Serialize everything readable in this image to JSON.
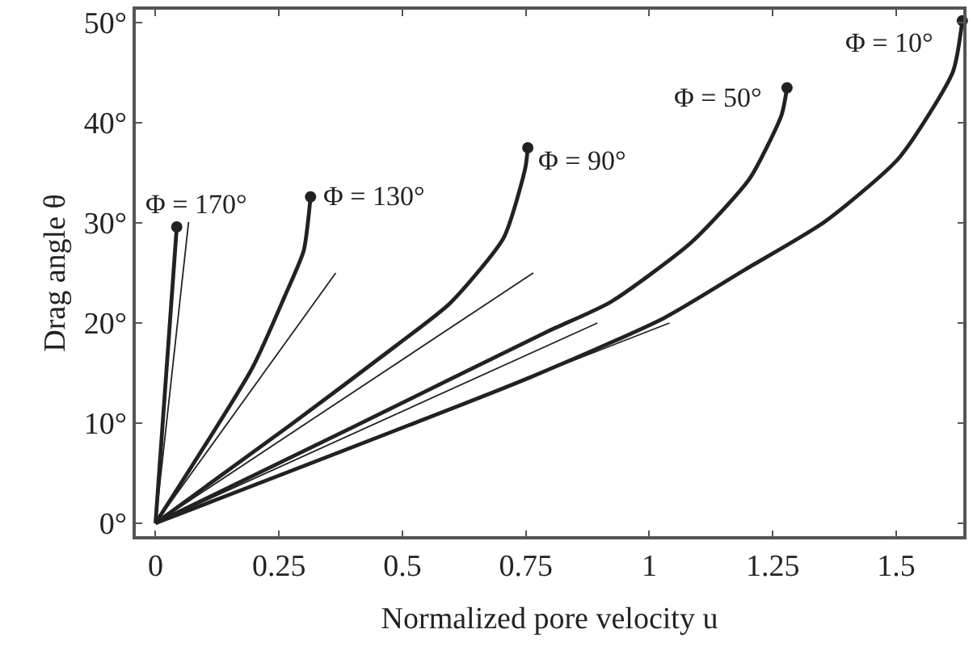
{
  "chart_data": {
    "type": "line",
    "xlabel": "Normalized pore velocity u",
    "ylabel": "Drag angle θ",
    "xlim": [
      -0.04,
      1.636
    ],
    "ylim": [
      -1.3,
      51.3
    ],
    "xticks": [
      0,
      0.25,
      0.5,
      0.75,
      1,
      1.25,
      1.5
    ],
    "yticks": [
      {
        "value": 0,
        "label": "0°"
      },
      {
        "value": 10,
        "label": "10°"
      },
      {
        "value": 20,
        "label": "20°"
      },
      {
        "value": 30,
        "label": "30°"
      },
      {
        "value": 40,
        "label": "40°"
      },
      {
        "value": 50,
        "label": "50°"
      }
    ],
    "series": [
      {
        "color": "#222222",
        "x": [
          0,
          0.043
        ],
        "values": [
          0,
          29.6
        ]
      },
      {
        "color": "#222222",
        "x": [
          0,
          0.197,
          0.262,
          0.3,
          0.314
        ],
        "values": [
          0,
          15.6,
          22.7,
          27.2,
          32.6
        ]
      },
      {
        "color": "#222222",
        "x": [
          0,
          0.273,
          0.489,
          0.597,
          0.705,
          0.749,
          0.754
        ],
        "values": [
          0,
          9.8,
          17.8,
          22.0,
          28.5,
          35.5,
          37.5
        ]
      },
      {
        "color": "#222222",
        "x": [
          0,
          0.4,
          0.792,
          0.922,
          1.084,
          1.203,
          1.268,
          1.279
        ],
        "values": [
          0,
          9.6,
          19.1,
          22.1,
          28.0,
          34.4,
          40.8,
          43.5
        ]
      },
      {
        "color": "#222222",
        "x": [
          0,
          0.76,
          1.03,
          1.193,
          1.355,
          1.506,
          1.615,
          1.634
        ],
        "values": [
          0,
          14.6,
          20.5,
          25.3,
          30.1,
          36.5,
          45.1,
          50.2
        ]
      },
      {
        "color": "#222222",
        "x": [
          0,
          0.067
        ],
        "values": [
          0,
          30.1
        ]
      },
      {
        "color": "#222222",
        "x": [
          0,
          0.365
        ],
        "values": [
          0,
          25.0
        ]
      },
      {
        "color": "#222222",
        "x": [
          0,
          0.765
        ],
        "values": [
          0,
          25.0
        ]
      },
      {
        "color": "#222222",
        "x": [
          0,
          0.895
        ],
        "values": [
          0,
          20.0
        ]
      },
      {
        "color": "#222222",
        "x": [
          0,
          1.041
        ],
        "values": [
          0,
          20.0
        ]
      },
      {
        "type": "scatter",
        "color": "#222222",
        "x": [
          0.043,
          0.314,
          0.754,
          1.279,
          1.634
        ],
        "values": [
          29.6,
          32.6,
          37.5,
          43.5,
          50.2
        ]
      }
    ],
    "annotations": [
      {
        "text": "Φ = 170°",
        "x": 0.043,
        "y": 29.6
      },
      {
        "text": "Φ = 130°",
        "x": 0.314,
        "y": 32.6
      },
      {
        "text": "Φ = 90°",
        "x": 0.754,
        "y": 37.5
      },
      {
        "text": "Φ = 50°",
        "x": 1.279,
        "y": 43.5
      },
      {
        "text": "Φ = 10°",
        "x": 1.634,
        "y": 50.2
      }
    ]
  }
}
